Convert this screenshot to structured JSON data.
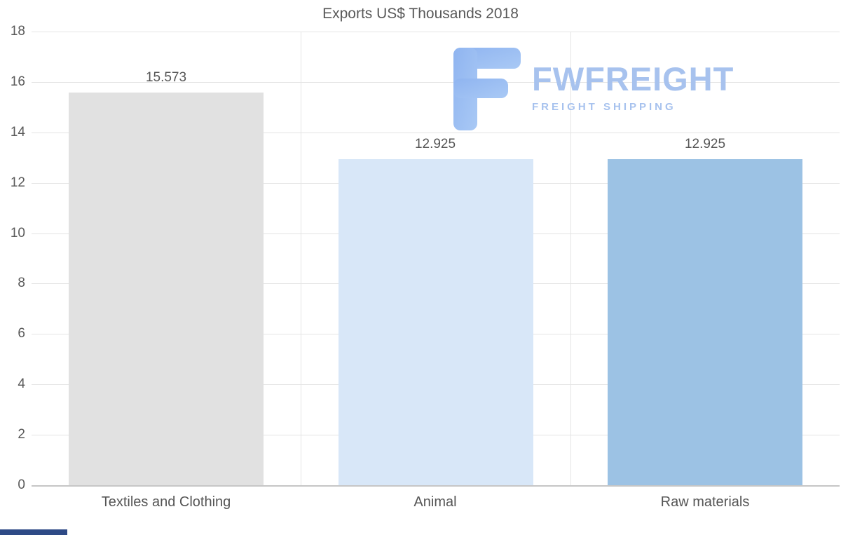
{
  "watermark": {
    "brand": "FWFREIGHT",
    "tagline": "FREIGHT SHIPPING",
    "color": "#a7c2ee",
    "logo_color": "#9bbdf2"
  },
  "chart_data": {
    "type": "bar",
    "title": "Exports US$ Thousands 2018",
    "categories": [
      "Textiles and Clothing",
      "Animal",
      "Raw materials"
    ],
    "values": [
      15.573,
      12.925,
      12.925
    ],
    "value_labels": [
      "15.573",
      "12.925",
      "12.925"
    ],
    "bar_colors": [
      "#e1e1e1",
      "#d8e7f8",
      "#9cc2e4"
    ],
    "xlabel": "",
    "ylabel": "",
    "ylim": [
      0,
      18
    ],
    "yticks": [
      0,
      2,
      4,
      6,
      8,
      10,
      12,
      14,
      16,
      18
    ],
    "grid": true,
    "legend": false
  }
}
